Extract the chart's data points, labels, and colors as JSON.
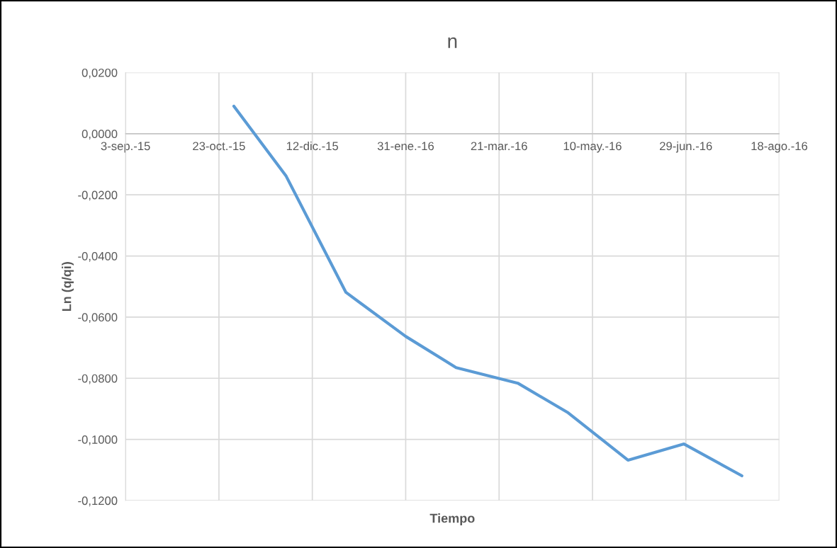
{
  "chart_data": {
    "type": "line",
    "title": "n",
    "xlabel": "Tiempo",
    "ylabel": "Ln (q/qi)",
    "x": [
      "2015-10-31",
      "2015-11-28",
      "2015-12-30",
      "2016-01-31",
      "2016-02-27",
      "2016-03-31",
      "2016-04-27",
      "2016-05-29",
      "2016-06-28",
      "2016-07-29"
    ],
    "series": [
      {
        "color": "#5b9bd5",
        "values": [
          0.009,
          -0.0139,
          -0.0519,
          -0.0663,
          -0.0765,
          -0.0816,
          -0.0913,
          -0.1068,
          -0.1015,
          -0.1119
        ]
      }
    ],
    "xlim": [
      "2015-09-03",
      "2016-08-18"
    ],
    "xticks": [
      {
        "value": "2015-09-03",
        "label": "3-sep.-15"
      },
      {
        "value": "2015-10-23",
        "label": "23-oct.-15"
      },
      {
        "value": "2015-12-12",
        "label": "12-dic.-15"
      },
      {
        "value": "2016-01-31",
        "label": "31-ene.-16"
      },
      {
        "value": "2016-03-21",
        "label": "21-mar.-16"
      },
      {
        "value": "2016-05-10",
        "label": "10-may.-16"
      },
      {
        "value": "2016-06-29",
        "label": "29-jun.-16"
      },
      {
        "value": "2016-08-18",
        "label": "18-ago.-16"
      }
    ],
    "ylim": [
      -0.12,
      0.02
    ],
    "yticks": [
      {
        "value": 0.02,
        "label": "0,0200"
      },
      {
        "value": 0.0,
        "label": "0,0000"
      },
      {
        "value": -0.02,
        "label": "-0,0200"
      },
      {
        "value": -0.04,
        "label": "-0,0400"
      },
      {
        "value": -0.06,
        "label": "-0,0600"
      },
      {
        "value": -0.08,
        "label": "-0,0800"
      },
      {
        "value": -0.1,
        "label": "-0,1000"
      },
      {
        "value": -0.12,
        "label": "-0,1200"
      }
    ],
    "grid": true,
    "marker": "none",
    "line_style": "solid"
  }
}
